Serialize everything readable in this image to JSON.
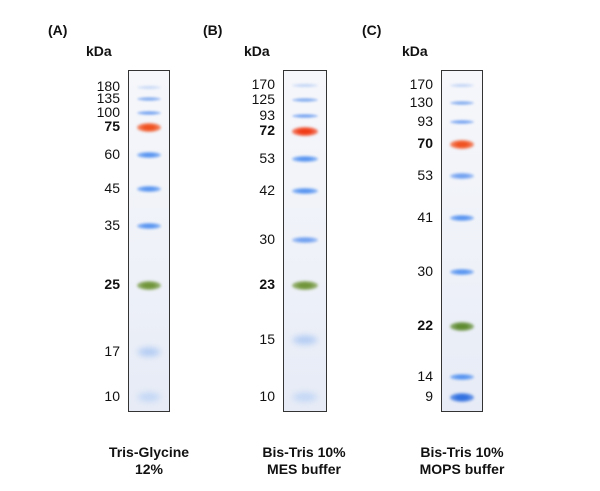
{
  "panels": [
    {
      "id": "A",
      "label": "(A)",
      "unit": "kDa",
      "caption_line1": "Tris-Glycine",
      "caption_line2": "12%",
      "markers": [
        {
          "kda": "180",
          "emphasis": false,
          "color": "#9bbcf0",
          "band": "faint"
        },
        {
          "kda": "135",
          "emphasis": false,
          "color": "#7aa6ee",
          "band": "thin"
        },
        {
          "kda": "100",
          "emphasis": false,
          "color": "#6a9cf0",
          "band": "thin"
        },
        {
          "kda": "75",
          "emphasis": true,
          "color": "#f0501e",
          "band": "strong"
        },
        {
          "kda": "60",
          "emphasis": false,
          "color": "#4f8ff0",
          "band": "medium"
        },
        {
          "kda": "45",
          "emphasis": false,
          "color": "#4f8ff0",
          "band": "medium"
        },
        {
          "kda": "35",
          "emphasis": false,
          "color": "#4f8ff0",
          "band": "medium"
        },
        {
          "kda": "25",
          "emphasis": true,
          "color": "#6f9438",
          "band": "strong"
        },
        {
          "kda": "17",
          "emphasis": false,
          "color": "#9fc0f2",
          "band": "diffuse"
        },
        {
          "kda": "10",
          "emphasis": false,
          "color": "#b5cff5",
          "band": "diffuse"
        }
      ]
    },
    {
      "id": "B",
      "label": "(B)",
      "unit": "kDa",
      "caption_line1": "Bis-Tris 10%",
      "caption_line2": "MES buffer",
      "markers": [
        {
          "kda": "170",
          "emphasis": false,
          "color": "#8fb3ef",
          "band": "faint"
        },
        {
          "kda": "125",
          "emphasis": false,
          "color": "#7aa6ee",
          "band": "thin"
        },
        {
          "kda": "93",
          "emphasis": false,
          "color": "#6a9cf0",
          "band": "thin"
        },
        {
          "kda": "72",
          "emphasis": true,
          "color": "#f03a14",
          "band": "strong"
        },
        {
          "kda": "53",
          "emphasis": false,
          "color": "#4f8ff0",
          "band": "medium"
        },
        {
          "kda": "42",
          "emphasis": false,
          "color": "#4f8ff0",
          "band": "medium"
        },
        {
          "kda": "30",
          "emphasis": false,
          "color": "#6a9cf0",
          "band": "medium"
        },
        {
          "kda": "23",
          "emphasis": true,
          "color": "#6f9438",
          "band": "strong"
        },
        {
          "kda": "15",
          "emphasis": false,
          "color": "#9fc0f2",
          "band": "diffuse"
        },
        {
          "kda": "10",
          "emphasis": false,
          "color": "#b5cff5",
          "band": "diffuse"
        }
      ]
    },
    {
      "id": "C",
      "label": "(C)",
      "unit": "kDa",
      "caption_line1": "Bis-Tris 10%",
      "caption_line2": "MOPS buffer",
      "markers": [
        {
          "kda": "170",
          "emphasis": false,
          "color": "#8fb3ef",
          "band": "faint"
        },
        {
          "kda": "130",
          "emphasis": false,
          "color": "#7aa6ee",
          "band": "thin"
        },
        {
          "kda": "93",
          "emphasis": false,
          "color": "#6a9cf0",
          "band": "thin"
        },
        {
          "kda": "70",
          "emphasis": true,
          "color": "#f0501e",
          "band": "strong"
        },
        {
          "kda": "53",
          "emphasis": false,
          "color": "#6a9cf0",
          "band": "medium"
        },
        {
          "kda": "41",
          "emphasis": false,
          "color": "#4f8ff0",
          "band": "medium"
        },
        {
          "kda": "30",
          "emphasis": false,
          "color": "#4f8ff0",
          "band": "medium"
        },
        {
          "kda": "22",
          "emphasis": true,
          "color": "#5d8a2e",
          "band": "strong"
        },
        {
          "kda": "14",
          "emphasis": false,
          "color": "#4f8ff0",
          "band": "medium"
        },
        {
          "kda": "9",
          "emphasis": false,
          "color": "#2f6fe0",
          "band": "strong"
        }
      ]
    }
  ]
}
